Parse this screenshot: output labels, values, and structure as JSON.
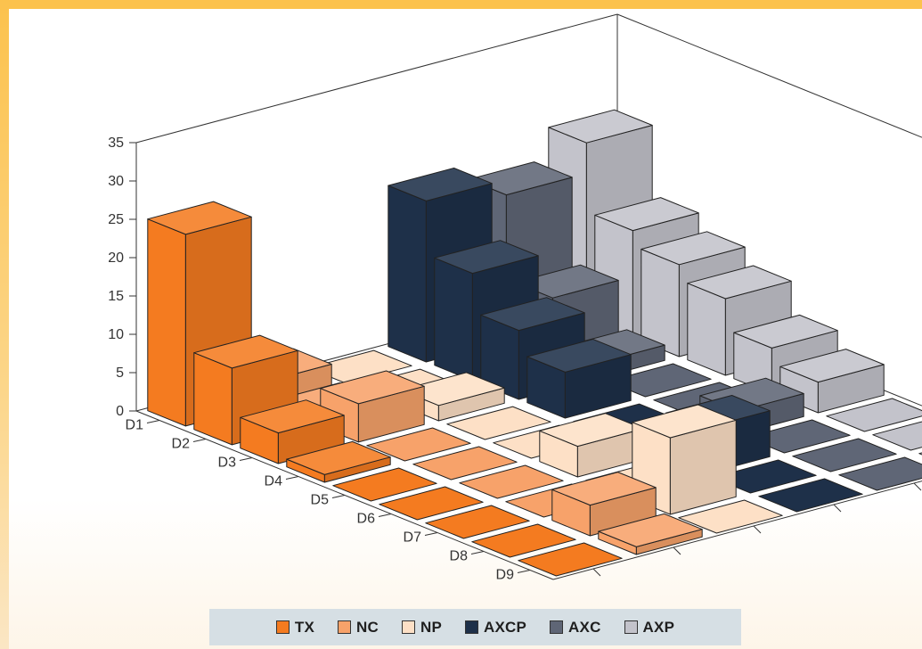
{
  "chart_data": {
    "type": "bar3d",
    "title": "",
    "zlim": [
      0,
      35
    ],
    "z_ticks": [
      "0",
      "5",
      "10",
      "15",
      "20",
      "25",
      "30",
      "35"
    ],
    "categories": [
      "D1",
      "D2",
      "D3",
      "D4",
      "D5",
      "D6",
      "D7",
      "D8",
      "D9"
    ],
    "series": [
      {
        "name": "TX",
        "color": "#f47b20",
        "values": [
          25,
          10,
          4,
          1,
          0,
          0,
          0,
          0,
          0
        ]
      },
      {
        "name": "NC",
        "color": "#f7a26a",
        "values": [
          3,
          1,
          5,
          0,
          0,
          0,
          0,
          4,
          1
        ]
      },
      {
        "name": "NP",
        "color": "#fde0c6",
        "values": [
          0,
          0,
          2,
          0,
          0,
          4,
          0,
          10,
          0
        ]
      },
      {
        "name": "AXCP",
        "color": "#1e3049",
        "values": [
          21,
          14,
          9,
          6,
          0,
          0,
          6,
          0,
          0
        ]
      },
      {
        "name": "AXC",
        "color": "#5f6676",
        "values": [
          19,
          8,
          2,
          0,
          0,
          3,
          0,
          0,
          0
        ]
      },
      {
        "name": "AXP",
        "color": "#c3c3cb",
        "values": [
          23,
          14,
          12,
          10,
          6,
          4,
          0,
          0,
          0
        ]
      }
    ],
    "legend_position": "bottom"
  }
}
